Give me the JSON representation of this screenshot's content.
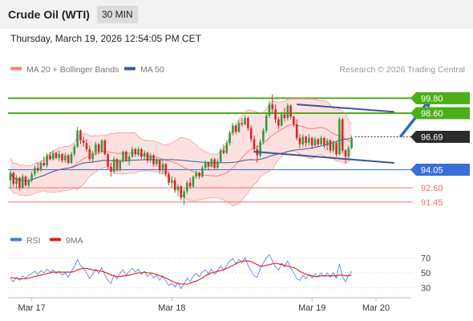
{
  "header": {
    "title": "Crude Oil (WTI)",
    "timeframe": "30 MIN",
    "datetime": "Thursday, March 19, 2026 12:54:05 PM CET"
  },
  "legend": {
    "items": [
      {
        "label": "MA 20 + Bollinger Bands",
        "color": "#f08080"
      },
      {
        "label": "MA 50",
        "color": "#3a5a96"
      }
    ],
    "credit": "Research © 2026 Trading Central"
  },
  "colors": {
    "up": "#2e9e3e",
    "down": "#d9262c",
    "band_fill": "#fde0e0",
    "ma20": "#f08080",
    "ma50": "#3a5a96",
    "resistance": "#4caf1a",
    "pivot": "#3a6fd8",
    "support": "#f07070",
    "current": "#333333",
    "rsi": "#4a7ad8",
    "rsi_ma": "#e01c1c"
  },
  "chart_data": [
    {
      "type": "candlestick",
      "ylim": [
        89.5,
        101.5
      ],
      "x_ticks": [
        {
          "label": "Mar 17",
          "index": 7
        },
        {
          "label": "Mar 18",
          "index": 53
        },
        {
          "label": "Mar 19",
          "index": 99
        },
        {
          "label": "Mar 20",
          "index": 120
        }
      ],
      "levels": [
        {
          "value": 99.8,
          "label": "99.80",
          "kind": "resistance"
        },
        {
          "value": 98.6,
          "label": "98.60",
          "kind": "resistance"
        },
        {
          "value": 96.69,
          "label": "96.69",
          "kind": "current"
        },
        {
          "value": 94.05,
          "label": "94.05",
          "kind": "pivot"
        },
        {
          "value": 92.6,
          "label": "92.60",
          "kind": "support"
        },
        {
          "value": 91.45,
          "label": "91.45",
          "kind": "support"
        }
      ],
      "channel": {
        "upper": {
          "from": [
            94,
            99.3
          ],
          "to": [
            126,
            98.7
          ]
        },
        "lower": {
          "from": [
            80,
            95.5
          ],
          "to": [
            126,
            94.6
          ]
        }
      },
      "arrow": {
        "from": [
          128,
          96.7
        ],
        "to": [
          138,
          99.8
        ]
      },
      "candles": [
        [
          93.2,
          94.1,
          92.5,
          93.8
        ],
        [
          93.8,
          93.9,
          92.7,
          92.9
        ],
        [
          92.9,
          93.6,
          92.5,
          93.4
        ],
        [
          93.4,
          93.5,
          92.4,
          92.6
        ],
        [
          92.6,
          93.7,
          92.5,
          93.5
        ],
        [
          93.5,
          93.6,
          92.7,
          92.8
        ],
        [
          92.8,
          93.4,
          92.6,
          93.2
        ],
        [
          93.2,
          93.9,
          93.0,
          93.7
        ],
        [
          93.7,
          94.4,
          93.5,
          94.2
        ],
        [
          94.2,
          94.6,
          93.8,
          94.0
        ],
        [
          94.0,
          94.8,
          93.9,
          94.6
        ],
        [
          94.6,
          95.1,
          94.3,
          94.4
        ],
        [
          94.4,
          95.4,
          94.2,
          95.2
        ],
        [
          95.2,
          95.5,
          94.8,
          94.9
        ],
        [
          94.9,
          95.6,
          94.8,
          95.4
        ],
        [
          95.4,
          95.5,
          94.9,
          95.0
        ],
        [
          95.0,
          95.6,
          94.7,
          95.3
        ],
        [
          95.3,
          95.4,
          94.6,
          94.8
        ],
        [
          94.8,
          95.4,
          94.6,
          95.2
        ],
        [
          95.2,
          95.3,
          94.5,
          94.6
        ],
        [
          94.6,
          95.5,
          94.5,
          95.3
        ],
        [
          95.3,
          96.1,
          95.1,
          95.9
        ],
        [
          95.9,
          97.5,
          95.8,
          97.2
        ],
        [
          97.2,
          97.3,
          96.1,
          96.4
        ],
        [
          96.4,
          96.7,
          95.9,
          96.2
        ],
        [
          96.2,
          96.5,
          95.5,
          95.7
        ],
        [
          95.7,
          96.0,
          94.7,
          94.9
        ],
        [
          94.9,
          95.6,
          94.6,
          95.4
        ],
        [
          95.4,
          96.3,
          95.2,
          96.1
        ],
        [
          96.1,
          96.2,
          95.3,
          95.5
        ],
        [
          95.5,
          96.5,
          95.4,
          96.4
        ],
        [
          96.4,
          96.5,
          95.2,
          95.3
        ],
        [
          95.3,
          95.4,
          94.1,
          94.3
        ],
        [
          94.3,
          94.6,
          93.5,
          93.9
        ],
        [
          93.9,
          95.1,
          93.7,
          94.9
        ],
        [
          94.9,
          95.0,
          93.9,
          94.1
        ],
        [
          94.1,
          94.9,
          93.9,
          94.8
        ],
        [
          94.8,
          95.6,
          94.6,
          95.5
        ],
        [
          95.5,
          95.6,
          94.7,
          94.8
        ],
        [
          94.8,
          95.3,
          94.4,
          95.1
        ],
        [
          95.1,
          95.9,
          95.0,
          95.7
        ],
        [
          95.7,
          95.8,
          95.1,
          95.3
        ],
        [
          95.3,
          95.9,
          95.1,
          95.7
        ],
        [
          95.7,
          95.8,
          94.9,
          95.1
        ],
        [
          95.1,
          95.6,
          94.8,
          95.4
        ],
        [
          95.4,
          95.5,
          94.6,
          94.8
        ],
        [
          94.8,
          95.4,
          94.6,
          95.2
        ],
        [
          95.2,
          95.3,
          94.3,
          94.5
        ],
        [
          94.5,
          95.0,
          94.3,
          94.8
        ],
        [
          94.8,
          94.9,
          93.8,
          94.0
        ],
        [
          94.0,
          94.8,
          93.7,
          94.5
        ],
        [
          94.5,
          94.6,
          93.5,
          93.7
        ],
        [
          93.7,
          93.9,
          92.8,
          93.0
        ],
        [
          93.0,
          93.5,
          92.6,
          93.2
        ],
        [
          93.2,
          93.4,
          92.2,
          92.4
        ],
        [
          92.4,
          92.9,
          91.9,
          92.7
        ],
        [
          92.7,
          92.8,
          91.6,
          91.8
        ],
        [
          91.8,
          92.5,
          91.2,
          92.3
        ],
        [
          92.3,
          93.2,
          92.1,
          93.0
        ],
        [
          93.0,
          93.4,
          92.5,
          92.7
        ],
        [
          92.7,
          93.6,
          92.6,
          93.5
        ],
        [
          93.5,
          94.0,
          93.3,
          93.8
        ],
        [
          93.8,
          93.9,
          93.3,
          93.5
        ],
        [
          93.5,
          94.4,
          93.4,
          94.2
        ],
        [
          94.2,
          94.8,
          94.0,
          94.6
        ],
        [
          94.6,
          94.7,
          94.0,
          94.3
        ],
        [
          94.3,
          95.0,
          94.2,
          94.9
        ],
        [
          94.9,
          95.0,
          94.1,
          94.2
        ],
        [
          94.2,
          94.9,
          94.1,
          94.7
        ],
        [
          94.7,
          95.8,
          94.6,
          95.6
        ],
        [
          95.6,
          96.1,
          95.3,
          95.4
        ],
        [
          95.4,
          96.4,
          95.3,
          96.2
        ],
        [
          96.2,
          97.2,
          96.0,
          97.0
        ],
        [
          97.0,
          97.8,
          96.8,
          97.6
        ],
        [
          97.6,
          97.7,
          96.9,
          97.1
        ],
        [
          97.1,
          98.0,
          97.0,
          97.8
        ],
        [
          97.8,
          98.2,
          97.5,
          97.7
        ],
        [
          97.7,
          98.4,
          97.6,
          98.2
        ],
        [
          98.2,
          98.3,
          97.2,
          97.4
        ],
        [
          97.4,
          97.6,
          96.3,
          96.5
        ],
        [
          96.5,
          96.8,
          95.4,
          95.7
        ],
        [
          95.7,
          96.0,
          94.6,
          95.2
        ],
        [
          95.2,
          96.5,
          95.0,
          96.3
        ],
        [
          96.3,
          97.4,
          96.1,
          97.2
        ],
        [
          97.2,
          98.6,
          97.0,
          98.4
        ],
        [
          98.4,
          99.6,
          98.2,
          99.3
        ],
        [
          99.3,
          100.1,
          98.6,
          98.9
        ],
        [
          98.9,
          99.3,
          97.8,
          98.1
        ],
        [
          98.1,
          98.3,
          97.3,
          97.6
        ],
        [
          97.6,
          98.7,
          97.5,
          98.5
        ],
        [
          98.5,
          99.0,
          97.9,
          98.2
        ],
        [
          98.2,
          99.4,
          98.0,
          99.2
        ],
        [
          99.2,
          99.3,
          98.1,
          98.3
        ],
        [
          98.3,
          98.4,
          97.5,
          97.7
        ],
        [
          97.7,
          98.1,
          96.4,
          96.6
        ],
        [
          96.6,
          96.9,
          95.8,
          96.1
        ],
        [
          96.1,
          96.9,
          95.9,
          96.7
        ],
        [
          96.7,
          96.8,
          95.9,
          96.2
        ],
        [
          96.2,
          96.9,
          96.0,
          96.6
        ],
        [
          96.6,
          96.7,
          95.7,
          96.0
        ],
        [
          96.0,
          96.7,
          95.8,
          96.5
        ],
        [
          96.5,
          96.6,
          95.9,
          96.1
        ],
        [
          96.1,
          96.8,
          96.0,
          96.6
        ],
        [
          96.6,
          96.7,
          95.8,
          96.0
        ],
        [
          96.0,
          96.6,
          95.6,
          96.4
        ],
        [
          96.4,
          96.5,
          95.4,
          95.6
        ],
        [
          95.6,
          96.4,
          95.4,
          96.2
        ],
        [
          96.2,
          96.3,
          95.1,
          95.3
        ],
        [
          95.3,
          98.3,
          95.2,
          98.1
        ],
        [
          98.1,
          98.2,
          95.4,
          95.6
        ],
        [
          95.6,
          95.7,
          94.6,
          95.1
        ],
        [
          95.1,
          96.0,
          94.9,
          95.8
        ],
        [
          95.8,
          96.8,
          95.7,
          96.6
        ]
      ]
    },
    {
      "type": "line",
      "ylim": [
        20,
        80
      ],
      "y_ticks": [
        70,
        50,
        30
      ],
      "legend": [
        "RSI",
        "9MA"
      ],
      "series": [
        {
          "name": "RSI",
          "values": [
            42,
            38,
            44,
            40,
            46,
            43,
            47,
            49,
            52,
            48,
            53,
            50,
            55,
            51,
            54,
            49,
            52,
            47,
            50,
            44,
            52,
            58,
            68,
            60,
            56,
            50,
            42,
            48,
            55,
            49,
            57,
            47,
            40,
            36,
            47,
            42,
            50,
            54,
            47,
            52,
            56,
            51,
            55,
            48,
            52,
            45,
            49,
            43,
            47,
            40,
            46,
            39,
            33,
            36,
            31,
            37,
            29,
            35,
            43,
            38,
            46,
            49,
            45,
            51,
            54,
            49,
            55,
            48,
            53,
            59,
            54,
            60,
            66,
            69,
            62,
            68,
            64,
            70,
            60,
            53,
            46,
            44,
            55,
            63,
            70,
            74,
            66,
            58,
            54,
            63,
            58,
            66,
            56,
            50,
            42,
            40,
            47,
            42,
            48,
            43,
            49,
            45,
            50,
            45,
            50,
            44,
            50,
            43,
            62,
            45,
            38,
            47,
            52
          ]
        },
        {
          "name": "9MA",
          "values": [
            44,
            43,
            43,
            42,
            42,
            42,
            43,
            44,
            45,
            46,
            47,
            48,
            49,
            50,
            51,
            51,
            51,
            51,
            51,
            51,
            51,
            52,
            54,
            55,
            56,
            56,
            55,
            54,
            53,
            53,
            52,
            51,
            49,
            47,
            46,
            45,
            45,
            46,
            46,
            47,
            48,
            49,
            50,
            50,
            51,
            50,
            50,
            49,
            48,
            46,
            45,
            43,
            41,
            39,
            37,
            36,
            35,
            35,
            35,
            36,
            38,
            39,
            41,
            43,
            46,
            48,
            50,
            51,
            52,
            53,
            54,
            56,
            58,
            60,
            62,
            64,
            65,
            66,
            66,
            65,
            63,
            61,
            59,
            59,
            60,
            61,
            62,
            63,
            62,
            61,
            60,
            59,
            58,
            57,
            55,
            52,
            50,
            48,
            47,
            46,
            45,
            45,
            46,
            46,
            46,
            46,
            46,
            46,
            47,
            47,
            46,
            46,
            47
          ]
        }
      ]
    }
  ]
}
